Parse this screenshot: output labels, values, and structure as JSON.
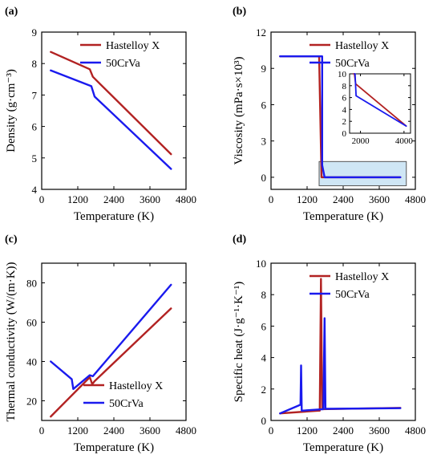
{
  "chart_data": [
    {
      "type": "line",
      "panel_label": "(a)",
      "xlabel": "Temperature (K)",
      "ylabel": "Density (g·cm⁻³)",
      "xlim": [
        0,
        4800
      ],
      "ylim": [
        4,
        9
      ],
      "xticks": [
        "0",
        "1200",
        "2400",
        "3600",
        "4800"
      ],
      "yticks": [
        "4",
        "5",
        "6",
        "7",
        "8",
        "9"
      ],
      "legend_position": "top-right",
      "series": [
        {
          "name": "Hastelloy X",
          "color": "#b22222",
          "x": [
            300,
            1600,
            1700,
            4300
          ],
          "y": [
            8.37,
            7.82,
            7.58,
            5.12
          ]
        },
        {
          "name": "50CrVa",
          "color": "#1a1aee",
          "x": [
            300,
            1650,
            1760,
            4300
          ],
          "y": [
            7.78,
            7.28,
            6.95,
            4.65
          ]
        }
      ]
    },
    {
      "type": "line",
      "panel_label": "(b)",
      "xlabel": "Temperature (K)",
      "ylabel": "Viscosity (mPa·s×10³)",
      "xlim": [
        0,
        4800
      ],
      "ylim": [
        -1,
        12
      ],
      "xticks": [
        "0",
        "1200",
        "2400",
        "3600",
        "4800"
      ],
      "yticks": [
        "0",
        "3",
        "6",
        "9",
        "12"
      ],
      "legend_position": "top-right",
      "highlight_region": {
        "x": [
          1600,
          4500
        ],
        "y": [
          -0.7,
          1.3
        ]
      },
      "series": [
        {
          "name": "Hastelloy X",
          "color": "#b22222",
          "x": [
            300,
            1600,
            1680,
            1700,
            4300
          ],
          "y": [
            10,
            10,
            0,
            0,
            0
          ]
        },
        {
          "name": "50CrVa",
          "color": "#1a1aee",
          "x": [
            300,
            1700,
            1700,
            1780,
            4300
          ],
          "y": [
            10,
            10,
            1.0,
            0,
            0
          ]
        }
      ],
      "inset": {
        "xlim": [
          1500,
          4300
        ],
        "ylim": [
          0,
          10
        ],
        "xticks": [
          "2000",
          "4000"
        ],
        "yticks": [
          "0",
          "2",
          "4",
          "6",
          "8",
          "10"
        ],
        "series": [
          {
            "name": "Hastelloy X",
            "color": "#b22222",
            "x": [
              1680,
              1720,
              1780,
              4100
            ],
            "y": [
              10,
              10,
              8.3,
              1.2
            ]
          },
          {
            "name": "50CrVa",
            "color": "#1a1aee",
            "x": [
              1720,
              1750,
              1800,
              4100
            ],
            "y": [
              10,
              10,
              6.3,
              1.2
            ]
          }
        ]
      }
    },
    {
      "type": "line",
      "panel_label": "(c)",
      "xlabel": "Temperature (K)",
      "ylabel": "Thermal conductivity (W/(m·K))",
      "xlim": [
        0,
        4800
      ],
      "ylim": [
        10,
        90
      ],
      "xticks": [
        "0",
        "1200",
        "2400",
        "3600",
        "4800"
      ],
      "yticks": [
        "20",
        "40",
        "60",
        "80"
      ],
      "legend_position": "bottom-right",
      "series": [
        {
          "name": "Hastelloy X",
          "color": "#b22222",
          "x": [
            300,
            1600,
            1680,
            1760,
            4300
          ],
          "y": [
            12,
            32,
            28.5,
            30,
            67
          ]
        },
        {
          "name": "50CrVa",
          "color": "#1a1aee",
          "x": [
            300,
            1000,
            1050,
            1600,
            1700,
            4300
          ],
          "y": [
            40,
            31,
            26,
            33,
            32.5,
            79
          ]
        }
      ]
    },
    {
      "type": "line",
      "panel_label": "(d)",
      "xlabel": "Temperature (K)",
      "ylabel": "Specific heat (J·g⁻¹·K⁻¹)",
      "xlim": [
        0,
        4800
      ],
      "ylim": [
        0,
        10
      ],
      "xticks": [
        "0",
        "1200",
        "2400",
        "3600",
        "4800"
      ],
      "yticks": [
        "0",
        "2",
        "4",
        "6",
        "8",
        "10"
      ],
      "legend_position": "top-right",
      "series": [
        {
          "name": "Hastelloy X",
          "color": "#b22222",
          "x": [
            300,
            1580,
            1620,
            1660,
            1700,
            4300
          ],
          "y": [
            0.45,
            0.62,
            0.62,
            9.0,
            0.72,
            0.8
          ]
        },
        {
          "name": "50CrVa",
          "color": "#1a1aee",
          "x": [
            300,
            980,
            1000,
            1020,
            1740,
            1780,
            1810,
            4300
          ],
          "y": [
            0.45,
            1.0,
            3.5,
            0.62,
            0.72,
            6.5,
            0.74,
            0.78
          ]
        }
      ]
    }
  ]
}
